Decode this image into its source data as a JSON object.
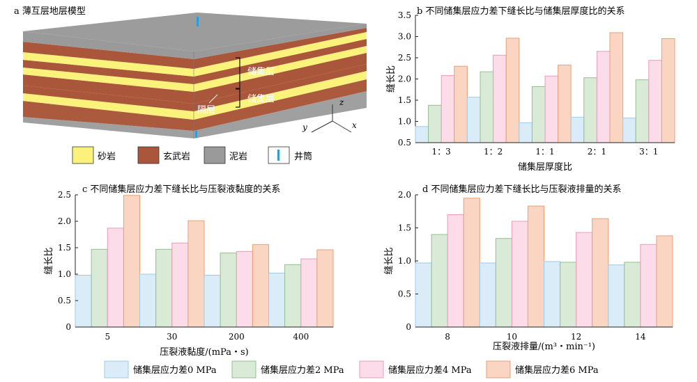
{
  "colors": {
    "s0": "#d9ecf8",
    "s0e": "#9ccbe8",
    "s2": "#d9ebd6",
    "s2e": "#93bf8c",
    "s4": "#fbdce8",
    "s4e": "#e79dba",
    "s6": "#fad5c1",
    "s6e": "#e89f79",
    "sandstone": "#fbf27b",
    "basalt": "#a9563a",
    "mudstone": "#9a9a9a",
    "well": "#2b9ed8"
  },
  "panel_a": {
    "title": "a 薄互层地层模型",
    "label_reservoir_top": "储集层",
    "label_reservoir_bottom": "储集层",
    "label_barrier": "隔层",
    "axis_z": "z",
    "axis_y": "y",
    "axis_x": "x",
    "legend": [
      {
        "label": "砂岩",
        "color_key": "sandstone"
      },
      {
        "label": "玄武岩",
        "color_key": "basalt"
      },
      {
        "label": "泥岩",
        "color_key": "mudstone"
      },
      {
        "label": "井筒",
        "color_key": "well"
      }
    ]
  },
  "legend": [
    "储集层应力差0 MPa",
    "储集层应力差2 MPa",
    "储集层应力差4 MPa",
    "储集层应力差6 MPa"
  ],
  "chart_data": [
    {
      "id": "b",
      "type": "bar",
      "title": "b 不同储集层应力差下缝长比与储集层厚度比的关系",
      "xlabel": "储集层厚度比",
      "ylabel": "缝长比",
      "ylim": [
        0.5,
        3.5
      ],
      "yticks": [
        "0.5",
        "1.0",
        "1.5",
        "2.0",
        "2.5",
        "3.0",
        "3.5"
      ],
      "categories": [
        "1：3",
        "1：2",
        "1：1",
        "2：1",
        "3：1"
      ],
      "series": [
        {
          "name": "储集层应力差0 MPa",
          "values": [
            0.88,
            1.57,
            0.97,
            1.1,
            1.08
          ]
        },
        {
          "name": "储集层应力差2 MPa",
          "values": [
            1.38,
            2.17,
            1.82,
            2.03,
            1.98
          ]
        },
        {
          "name": "储集层应力差4 MPa",
          "values": [
            2.08,
            2.56,
            2.07,
            2.65,
            2.44
          ]
        },
        {
          "name": "储集层应力差6 MPa",
          "values": [
            2.3,
            2.96,
            2.33,
            3.09,
            2.95
          ]
        }
      ]
    },
    {
      "id": "c",
      "type": "bar",
      "title": "c 不同储集层应力差下缝长比与压裂液黏度的关系",
      "xlabel": "压裂液黏度/(mPa・s)",
      "ylabel": "缝长比",
      "ylim": [
        0,
        2.5
      ],
      "yticks": [
        "0",
        "0.5",
        "1.0",
        "1.5",
        "2.0",
        "2.5"
      ],
      "categories": [
        "5",
        "30",
        "200",
        "400"
      ],
      "series": [
        {
          "name": "储集层应力差0 MPa",
          "values": [
            0.98,
            1.0,
            0.98,
            1.02
          ]
        },
        {
          "name": "储集层应力差2 MPa",
          "values": [
            1.47,
            1.47,
            1.4,
            1.18
          ]
        },
        {
          "name": "储集层应力差4 MPa",
          "values": [
            1.87,
            1.59,
            1.43,
            1.29
          ]
        },
        {
          "name": "储集层应力差6 MPa",
          "values": [
            2.49,
            2.01,
            1.56,
            1.46
          ]
        }
      ]
    },
    {
      "id": "d",
      "type": "bar",
      "title": "d 不同储集层应力差下缝长比与压裂液排量的关系",
      "xlabel": "压裂液排量/(m³・min⁻¹)",
      "ylabel": "缝长比",
      "ylim": [
        0,
        2.0
      ],
      "yticks": [
        "0",
        "0.5",
        "1.0",
        "1.5",
        "2.0"
      ],
      "categories": [
        "8",
        "10",
        "12",
        "14"
      ],
      "series": [
        {
          "name": "储集层应力差0 MPa",
          "values": [
            0.97,
            0.97,
            0.99,
            0.94
          ]
        },
        {
          "name": "储集层应力差2 MPa",
          "values": [
            1.4,
            1.34,
            0.98,
            0.98
          ]
        },
        {
          "name": "储集层应力差4 MPa",
          "values": [
            1.7,
            1.6,
            1.43,
            1.25
          ]
        },
        {
          "name": "储集层应力差6 MPa",
          "values": [
            1.95,
            1.83,
            1.64,
            1.38
          ]
        }
      ]
    }
  ]
}
